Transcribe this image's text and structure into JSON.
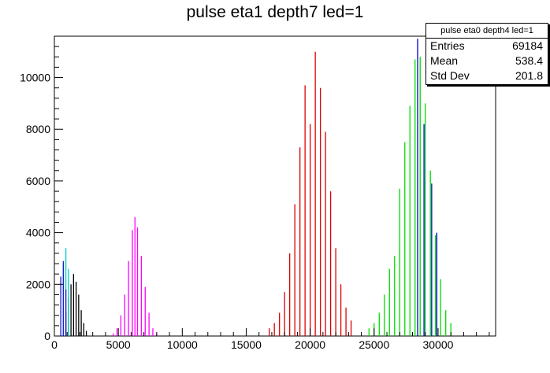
{
  "chart_data": {
    "type": "bar",
    "title": "pulse eta1 depth7 led=1",
    "xlim": [
      0,
      34500
    ],
    "ylim": [
      0,
      11600
    ],
    "x_ticks": [
      0,
      5000,
      10000,
      15000,
      20000,
      25000,
      30000
    ],
    "y_ticks": [
      0,
      2000,
      4000,
      6000,
      8000,
      10000
    ],
    "grid": false,
    "legend": "top-right",
    "series": [
      {
        "color": "#000000",
        "peaks": [
          [
            900,
            900
          ],
          [
            1100,
            1500
          ],
          [
            1300,
            2000
          ],
          [
            1500,
            2400
          ],
          [
            1700,
            2100
          ],
          [
            1900,
            1600
          ],
          [
            2100,
            1000
          ],
          [
            2300,
            500
          ],
          [
            2500,
            200
          ]
        ]
      },
      {
        "color": "#ff00ff",
        "peaks": [
          [
            4600,
            100
          ],
          [
            4900,
            300
          ],
          [
            5200,
            800
          ],
          [
            5500,
            1600
          ],
          [
            5800,
            2900
          ],
          [
            6100,
            4100
          ],
          [
            6300,
            4600
          ],
          [
            6500,
            4200
          ],
          [
            6800,
            3100
          ],
          [
            7100,
            1900
          ],
          [
            7400,
            900
          ],
          [
            7700,
            300
          ],
          [
            8000,
            100
          ]
        ]
      },
      {
        "color": "#dd0000",
        "peaks": [
          [
            16800,
            300
          ],
          [
            17200,
            500
          ],
          [
            17600,
            900
          ],
          [
            18000,
            1700
          ],
          [
            18400,
            3200
          ],
          [
            18800,
            5100
          ],
          [
            19200,
            7300
          ],
          [
            19600,
            9700
          ],
          [
            20000,
            8200
          ],
          [
            20400,
            11000
          ],
          [
            20800,
            9600
          ],
          [
            21200,
            7900
          ],
          [
            21600,
            5600
          ],
          [
            22000,
            3400
          ],
          [
            22400,
            2000
          ],
          [
            22800,
            1100
          ],
          [
            23200,
            600
          ]
        ]
      },
      {
        "color": "#00dd00",
        "peaks": [
          [
            24600,
            300
          ],
          [
            25000,
            500
          ],
          [
            25400,
            900
          ],
          [
            25800,
            1600
          ],
          [
            26200,
            2600
          ],
          [
            26600,
            3100
          ],
          [
            27000,
            5700
          ],
          [
            27400,
            7500
          ],
          [
            27800,
            8900
          ],
          [
            28200,
            10700
          ],
          [
            28600,
            10800
          ],
          [
            29000,
            9000
          ],
          [
            29400,
            6400
          ],
          [
            29800,
            3900
          ],
          [
            30200,
            2200
          ],
          [
            30600,
            1000
          ],
          [
            31000,
            500
          ]
        ]
      },
      {
        "color": "#0000cc",
        "peaks": [
          [
            28400,
            11500
          ],
          [
            28900,
            8200
          ],
          [
            29500,
            5900
          ],
          [
            29900,
            4000
          ]
        ]
      },
      {
        "color": "#00cccc",
        "peaks": [
          [
            700,
            2800
          ],
          [
            900,
            3400
          ],
          [
            1100,
            2600
          ]
        ]
      },
      {
        "color": "#1a1acc",
        "peaks": [
          [
            500,
            2300
          ],
          [
            700,
            2900
          ],
          [
            900,
            1800
          ]
        ]
      }
    ]
  },
  "stats_box": {
    "header": "pulse eta0 depth4 led=1",
    "rows": [
      {
        "label": "Entries",
        "value": "69184"
      },
      {
        "label": "Mean",
        "value": "538.4"
      },
      {
        "label": "Std Dev",
        "value": "201.8"
      }
    ]
  }
}
